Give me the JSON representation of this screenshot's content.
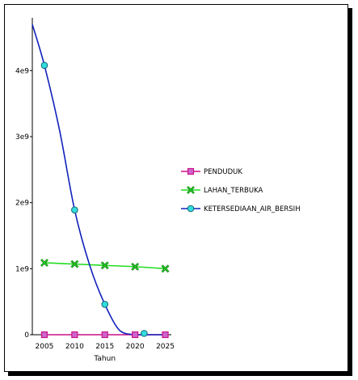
{
  "chart_data": {
    "type": "line",
    "title": "",
    "xlabel": "Tahun",
    "ylabel": "",
    "xlim": [
      2003,
      2026
    ],
    "ylim": [
      0,
      4800000000.0
    ],
    "x_ticks": [
      2005,
      2010,
      2015,
      2020,
      2025
    ],
    "y_ticks": [
      {
        "value": 0,
        "label": "0"
      },
      {
        "value": 1000000000.0,
        "label": "1e9"
      },
      {
        "value": 2000000000.0,
        "label": "2e9"
      },
      {
        "value": 3000000000.0,
        "label": "3e9"
      },
      {
        "value": 4000000000.0,
        "label": "4e9"
      }
    ],
    "legend_position": "right",
    "series": [
      {
        "name": "PENDUDUK",
        "color": "#cc1188",
        "marker": "square",
        "marker_fill": "#cc66cc",
        "x": [
          2005,
          2010,
          2015,
          2020,
          2025
        ],
        "y": [
          0,
          0,
          0,
          0,
          0
        ],
        "marker_x": [
          2005,
          2010,
          2015,
          2020,
          2025
        ],
        "marker_y": [
          0,
          0,
          0,
          0,
          0
        ]
      },
      {
        "name": "LAHAN_TERBUKA",
        "color": "#22dd22",
        "marker": "x",
        "marker_fill": "#116611",
        "x": [
          2005,
          2010,
          2015,
          2020,
          2025
        ],
        "y": [
          1090000000.0,
          1070000000.0,
          1050000000.0,
          1030000000.0,
          1000000000.0
        ],
        "marker_x": [
          2005,
          2010,
          2015,
          2020,
          2025
        ],
        "marker_y": [
          1090000000.0,
          1070000000.0,
          1050000000.0,
          1030000000.0,
          1000000000.0
        ]
      },
      {
        "name": "KETERSEDIAAN_AIR_BERSIH",
        "color": "#1122bb",
        "marker": "circle",
        "marker_fill": "#33dddd",
        "x": [
          2003,
          2005,
          2007.5,
          2010,
          2012.5,
          2015,
          2017.5,
          2020,
          2022.5,
          2025
        ],
        "y": [
          4700000000.0,
          4080000000.0,
          3100000000.0,
          1890000000.0,
          1050000000.0,
          460000000.0,
          60000000.0,
          0.0,
          0.0,
          0.0
        ],
        "marker_x": [
          2005,
          2010,
          2015,
          2021.5
        ],
        "marker_y": [
          4080000000.0,
          1890000000.0,
          460000000.0,
          20000000.0
        ]
      }
    ]
  }
}
